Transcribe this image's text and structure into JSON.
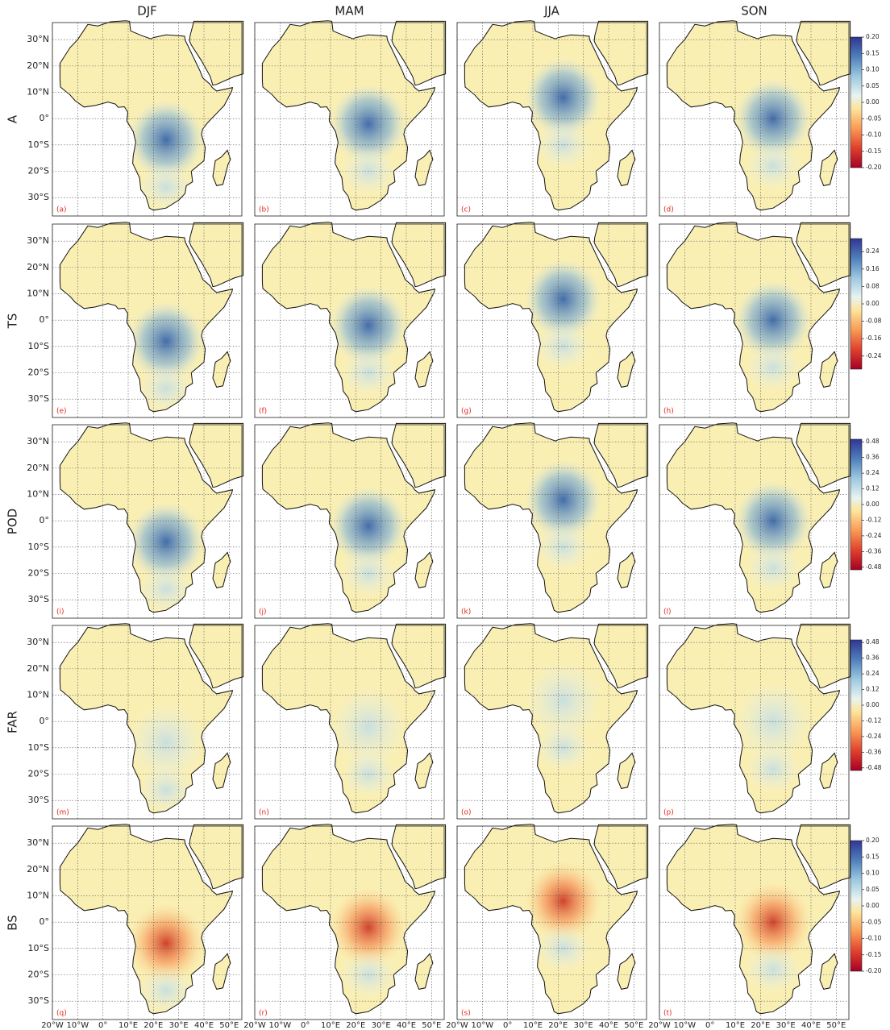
{
  "columns": [
    "DJF",
    "MAM",
    "JJA",
    "SON"
  ],
  "rows": [
    {
      "label": "A",
      "ylim": [
        -0.2,
        0.2
      ],
      "yticks": [
        {
          "value": 0.2,
          "label": "0.20"
        },
        0.15,
        {
          "value": 0.1,
          "label": "0.10"
        },
        0.05,
        {
          "value": 0,
          "label": "0.00"
        },
        -0.05,
        {
          "value": -0.1,
          "label": "-0.10"
        },
        -0.15,
        {
          "value": -0.2,
          "label": "-0.20"
        }
      ]
    },
    {
      "label": "TS",
      "ylim": [
        -0.3,
        0.3
      ],
      "yticks": [
        0.24,
        0.16,
        0.08,
        {
          "value": 0,
          "label": "0.00"
        },
        -0.08,
        -0.16,
        -0.24
      ]
    },
    {
      "label": "POD",
      "ylim": [
        -0.5,
        0.5
      ],
      "yticks": [
        0.48,
        0.36,
        0.24,
        0.12,
        {
          "value": 0,
          "label": "0.00"
        },
        -0.12,
        -0.24,
        -0.36,
        -0.48
      ]
    },
    {
      "label": "FAR",
      "ylim": [
        -0.5,
        0.5
      ],
      "yticks": [
        0.48,
        0.36,
        0.24,
        0.12,
        {
          "value": 0,
          "label": "0.00"
        },
        -0.12,
        -0.24,
        -0.36,
        -0.48
      ]
    },
    {
      "label": "BS",
      "ylim": [
        -0.2,
        0.2
      ],
      "yticks": [
        {
          "value": 0.2,
          "label": "0.20"
        },
        0.15,
        {
          "value": 0.1,
          "label": "0.10"
        },
        0.05,
        {
          "value": 0,
          "label": "0.00"
        },
        -0.05,
        {
          "value": -0.1,
          "label": "-0.10"
        },
        -0.15,
        {
          "value": -0.2,
          "label": "-0.20"
        }
      ]
    }
  ],
  "panel_labels": [
    "(a)",
    "(b)",
    "(c)",
    "(d)",
    "(e)",
    "(f)",
    "(g)",
    "(h)",
    "(i)",
    "(j)",
    "(k)",
    "(l)",
    "(m)",
    "(n)",
    "(o)",
    "(p)",
    "(q)",
    "(r)",
    "(s)",
    "(t)"
  ],
  "lat_ticks": [
    {
      "value": 30,
      "label": "30°N"
    },
    {
      "value": 20,
      "label": "20°N"
    },
    {
      "value": 10,
      "label": "10°N"
    },
    {
      "value": 0,
      "label": "0°"
    },
    {
      "value": -10,
      "label": "10°S"
    },
    {
      "value": -20,
      "label": "20°S"
    },
    {
      "value": -30,
      "label": "30°S"
    }
  ],
  "lon_ticks": [
    {
      "value": -20,
      "label": "20°W"
    },
    {
      "value": -10,
      "label": "10°W"
    },
    {
      "value": 0,
      "label": "0°"
    },
    {
      "value": 10,
      "label": "10°E"
    },
    {
      "value": 20,
      "label": "20°E"
    },
    {
      "value": 30,
      "label": "30°E"
    },
    {
      "value": 40,
      "label": "40°E"
    },
    {
      "value": 50,
      "label": "50°E"
    }
  ]
}
